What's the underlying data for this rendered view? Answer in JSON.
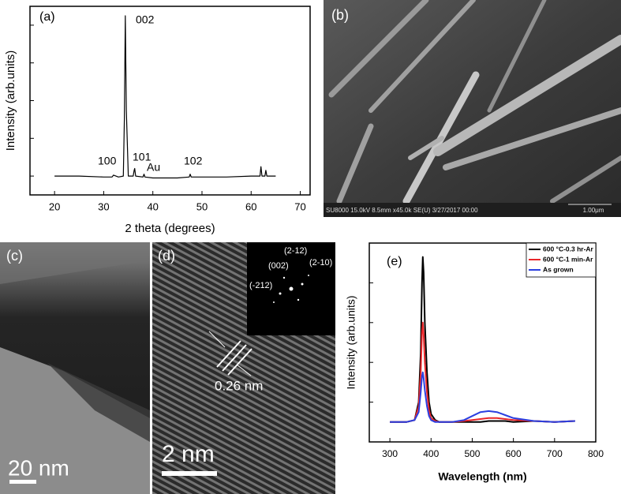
{
  "chart_data": [
    {
      "type": "line",
      "annotations": [
        "(a)",
        "002",
        "100",
        "101",
        "Au",
        "102"
      ],
      "xlabel": "2 theta (degrees)",
      "ylabel": "Intensity (arb.units)",
      "x": [
        20,
        25,
        30,
        31.7,
        32,
        33,
        34,
        34.2,
        34.4,
        34.6,
        35,
        36,
        36.2,
        36.3,
        36.5,
        38,
        38.2,
        38.4,
        40,
        45,
        47.4,
        47.6,
        47.8,
        55,
        60,
        61.8,
        62,
        62.2,
        62.8,
        63,
        63.2,
        65
      ],
      "values": [
        10,
        10,
        9.5,
        9.5,
        10.5,
        9.5,
        10,
        40,
        95,
        45,
        10,
        10,
        13,
        14,
        10,
        9.5,
        11,
        9.5,
        9,
        9,
        9.5,
        11,
        9.5,
        9.5,
        10,
        10,
        15,
        10,
        10,
        13,
        10,
        10
      ],
      "color": "#000000",
      "xlim": [
        15,
        72
      ],
      "ylim": [
        0,
        100
      ],
      "xticks": [
        20,
        30,
        40,
        50,
        60,
        70
      ],
      "yticks": [
        10,
        30,
        50,
        70,
        90
      ]
    },
    {
      "type": "line",
      "title": "(e)",
      "xlabel": "Wavelength (nm)",
      "ylabel": "Intensity (arb.units)",
      "x": [
        300,
        340,
        360,
        370,
        375,
        378,
        380,
        382,
        385,
        390,
        395,
        400,
        410,
        420,
        450,
        480,
        500,
        520,
        540,
        560,
        580,
        600,
        650,
        700,
        750
      ],
      "series": [
        {
          "name": "600 °C-0.3 hr-Ar",
          "color": "#000000",
          "values": [
            10,
            10,
            11,
            20,
            45,
            80,
            93,
            85,
            60,
            35,
            20,
            14,
            11,
            10,
            10,
            10,
            10,
            10,
            10.5,
            10.5,
            10.5,
            10,
            10.5,
            10,
            10.5
          ]
        },
        {
          "name": "600 °C-1 min-Ar",
          "color": "#e8262a",
          "values": [
            10,
            10,
            11,
            18,
            35,
            55,
            60,
            54,
            40,
            25,
            16,
            12,
            10.5,
            10,
            10,
            10.5,
            11,
            11.5,
            12,
            12,
            11.5,
            11,
            10.5,
            10,
            10.5
          ]
        },
        {
          "name": "As grown",
          "color": "#2b3fe0",
          "values": [
            10,
            10,
            11,
            15,
            25,
            33,
            35,
            32,
            26,
            18,
            13,
            11,
            10,
            10,
            10,
            11,
            13,
            15,
            15.5,
            15,
            13.5,
            12,
            10.5,
            10,
            10.5
          ]
        }
      ],
      "legend": "upper right",
      "xlim": [
        250,
        800
      ],
      "ylim": [
        0,
        100
      ],
      "xticks": [
        300,
        400,
        500,
        600,
        700,
        800
      ],
      "yticks": [
        20,
        40,
        60,
        80
      ]
    }
  ],
  "panels": {
    "b": {
      "label": "(b)",
      "info": "SU8000 15.0kV 8.5mm x45.0k SE(U) 3/27/2017 00:00",
      "scale": "1.00μm"
    },
    "c": {
      "label": "(c)",
      "scale": "20 nm"
    },
    "d": {
      "label": "(d)",
      "scale": "2 nm",
      "spacing": "0.26 nm",
      "inset": [
        "(002)",
        "(2-12)",
        "(2-10)",
        "(-212)"
      ]
    }
  }
}
